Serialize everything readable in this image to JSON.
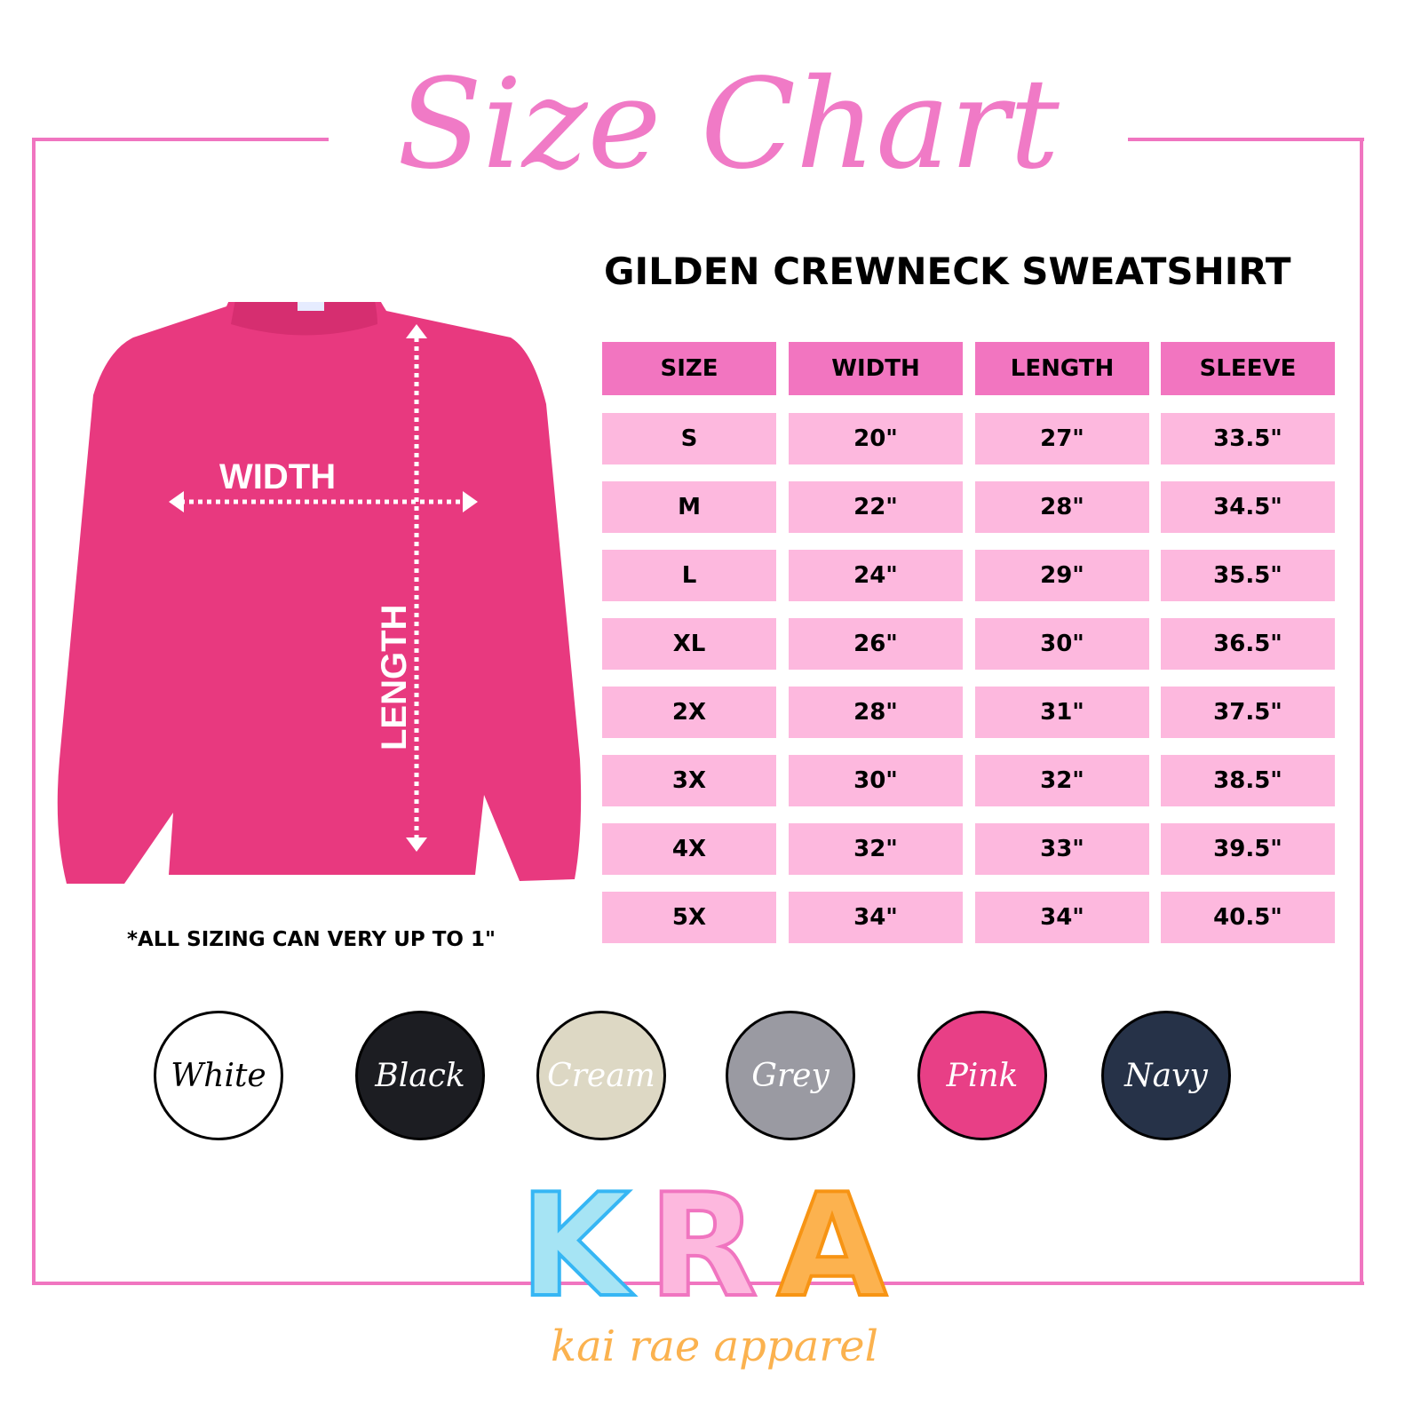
{
  "title": "Size Chart",
  "subtitle": "GILDEN CREWNECK SWEATSHIRT",
  "colors": {
    "frame": "#f075c0",
    "header": "#f275c0",
    "row": "#fdb8de",
    "shirt": "#e8397f"
  },
  "diagram": {
    "width_label": "WIDTH",
    "length_label": "LENGTH"
  },
  "table": {
    "headers": [
      "SIZE",
      "WIDTH",
      "LENGTH",
      "SLEEVE"
    ],
    "rows": [
      [
        "S",
        "20\"",
        "27\"",
        "33.5\""
      ],
      [
        "M",
        "22\"",
        "28\"",
        "34.5\""
      ],
      [
        "L",
        "24\"",
        "29\"",
        "35.5\""
      ],
      [
        "XL",
        "26\"",
        "30\"",
        "36.5\""
      ],
      [
        "2X",
        "28\"",
        "31\"",
        "37.5\""
      ],
      [
        "3X",
        "30\"",
        "32\"",
        "38.5\""
      ],
      [
        "4X",
        "32\"",
        "33\"",
        "39.5\""
      ],
      [
        "5X",
        "34\"",
        "34\"",
        "40.5\""
      ]
    ]
  },
  "note": "*ALL SIZING CAN VERY UP TO 1\"",
  "swatches": [
    {
      "label": "White",
      "fill": "#ffffff",
      "text": "#000000"
    },
    {
      "label": "Black",
      "fill": "#1c1d22",
      "text": "#ffffff"
    },
    {
      "label": "Cream",
      "fill": "#ddd8c4",
      "text": "#ffffff"
    },
    {
      "label": "Grey",
      "fill": "#9a9aa2",
      "text": "#ffffff"
    },
    {
      "label": "Pink",
      "fill": "#e83f86",
      "text": "#ffffff"
    },
    {
      "label": "Navy",
      "fill": "#263248",
      "text": "#ffffff"
    }
  ],
  "logo": {
    "letters": [
      "K",
      "R",
      "A"
    ],
    "tagline": "kai rae apparel"
  }
}
